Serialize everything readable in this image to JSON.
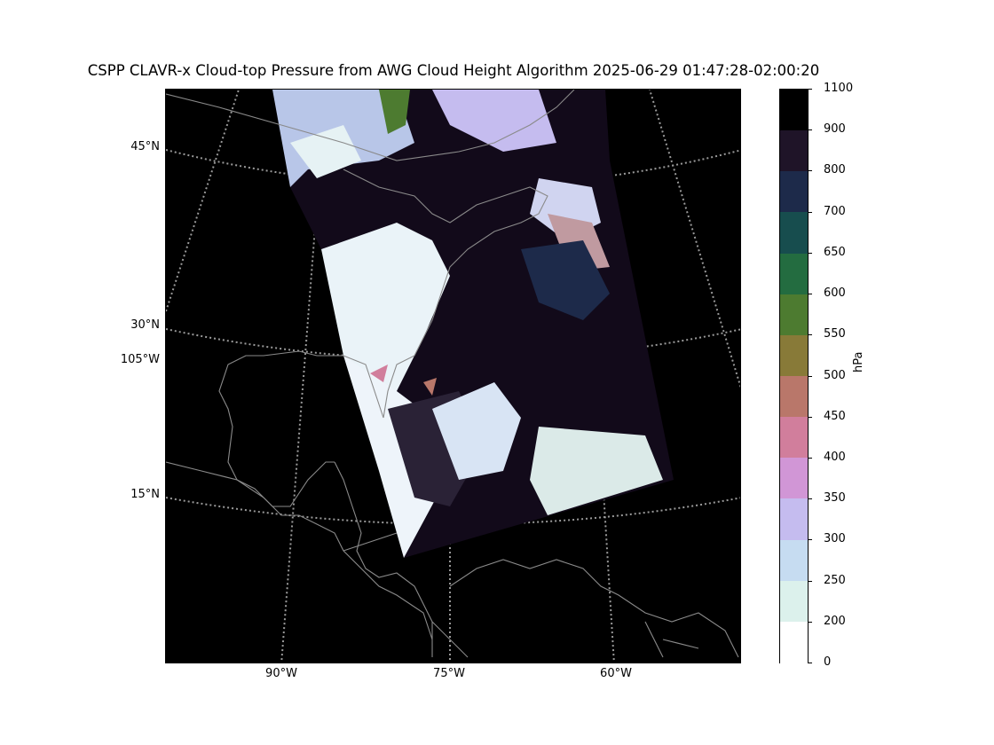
{
  "title": "CSPP CLAVR-x Cloud-top Pressure from AWG Cloud Height Algorithm 2025-06-29 01:47:28-02:00:20",
  "lat_labels": [
    "45°N",
    "30°N",
    "105°W",
    "15°N"
  ],
  "lon_labels": [
    "90°W",
    "75°W",
    "60°W"
  ],
  "colorbar": {
    "label": "hPa",
    "ticks": [
      "1100",
      "900",
      "800",
      "700",
      "650",
      "600",
      "550",
      "500",
      "450",
      "400",
      "350",
      "300",
      "250",
      "200",
      "0"
    ],
    "colors": [
      "#000000",
      "#1f1428",
      "#1d2a4a",
      "#174d4e",
      "#236c40",
      "#4d7b30",
      "#887a38",
      "#b9776a",
      "#d17e9c",
      "#d196d6",
      "#c5bcef",
      "#c6dcf1",
      "#dcf1ec",
      "#ffffff"
    ]
  },
  "colors": {
    "background": "#000000",
    "coastline": "#8a8a8a",
    "gridline": "#9a9a9a"
  }
}
